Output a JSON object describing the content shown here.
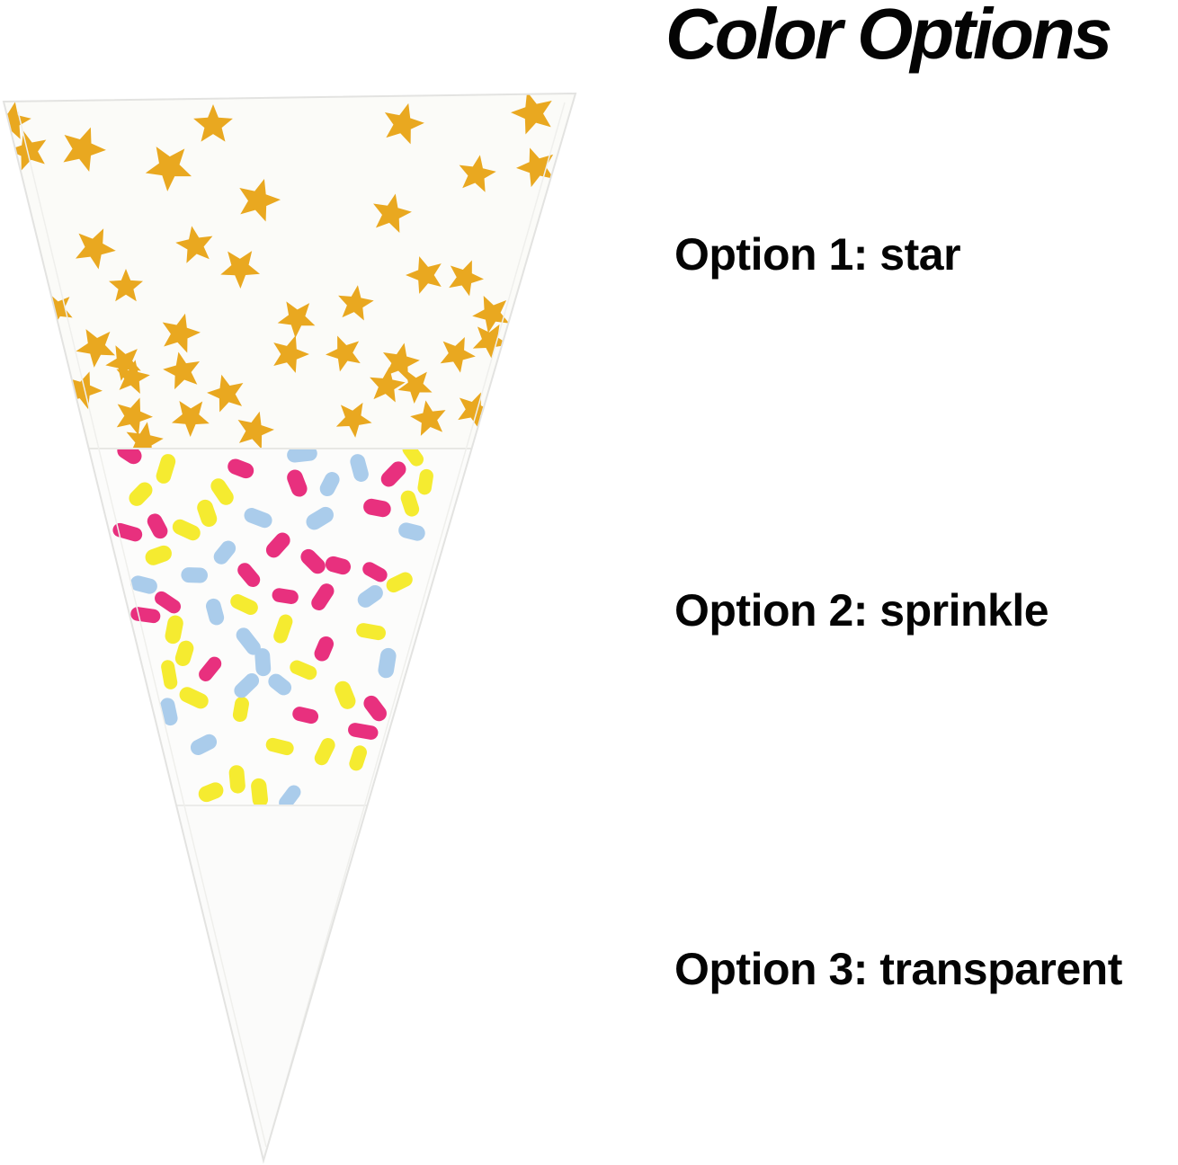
{
  "header": {
    "title": "Color Options",
    "color": "#040404"
  },
  "options": [
    {
      "id": 1,
      "label": "Option 1: star"
    },
    {
      "id": 2,
      "label": "Option 2: sprinkle"
    },
    {
      "id": 3,
      "label": "Option 3: transparent"
    }
  ],
  "cone": {
    "name": "cone-shaped-cellophane-bag",
    "edge_color": "#e3e3e1",
    "crease_color": "#efefec",
    "sections": [
      {
        "name": "star",
        "star_color": "#E9A820"
      },
      {
        "name": "sprinkle",
        "colors": {
          "pink": "#E8307E",
          "yellow": "#F5EB30",
          "blue": "#AACCEB"
        }
      },
      {
        "name": "transparent"
      }
    ]
  }
}
